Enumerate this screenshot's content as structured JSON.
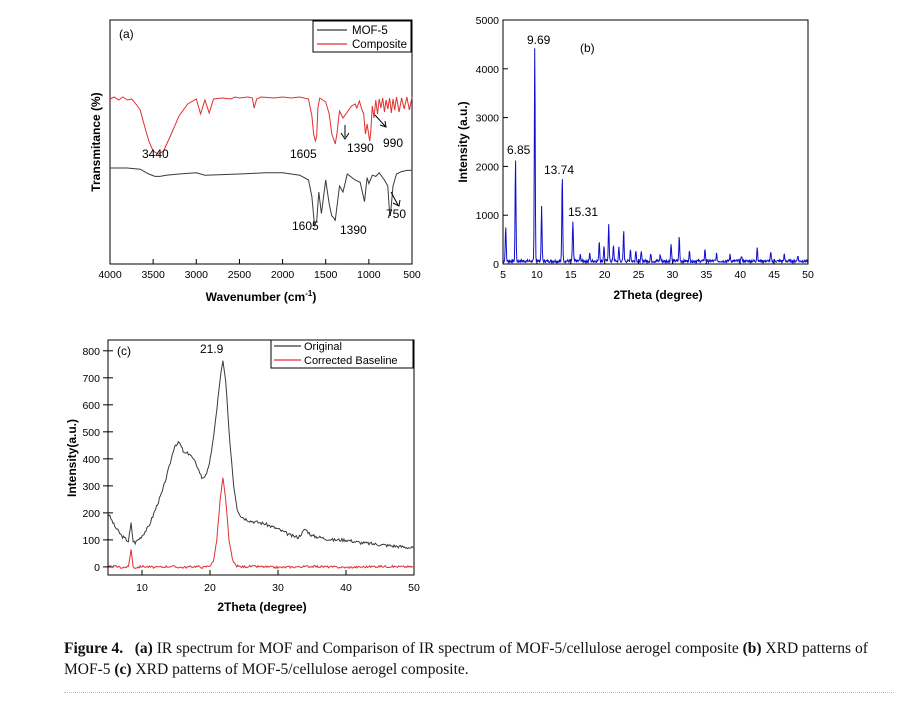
{
  "chart_data": [
    {
      "type": "line",
      "panel_label": "(a)",
      "xlabel": "Wavenumber (cm",
      "xlabel_sup": "-1",
      "xlabel_close": ")",
      "ylabel": "Transmitance (%)",
      "xlim": [
        4000,
        500
      ],
      "x_reversed": true,
      "xticks": [
        "4000",
        "3500",
        "3000",
        "2500",
        "2000",
        "1500",
        "1000",
        "500"
      ],
      "grid": false,
      "legend": "top-right",
      "series": [
        {
          "name": "MOF-5",
          "color": "#3a3a3a",
          "x": [
            4000,
            3800,
            3650,
            3550,
            3480,
            3420,
            3350,
            3200,
            3000,
            2900,
            2500,
            2200,
            2000,
            1900,
            1800,
            1700,
            1660,
            1630,
            1605,
            1580,
            1550,
            1500,
            1460,
            1430,
            1400,
            1390,
            1380,
            1340,
            1300,
            1250,
            1160,
            1100,
            1050,
            1020,
            1000,
            960,
            920,
            880,
            820,
            780,
            760,
            750,
            720,
            680,
            620,
            560,
            500
          ],
          "y": [
            1.0,
            1.0,
            0.99,
            0.95,
            0.93,
            0.93,
            0.94,
            0.95,
            0.96,
            0.94,
            0.95,
            0.96,
            0.96,
            0.95,
            0.94,
            0.9,
            0.76,
            0.52,
            0.56,
            0.8,
            0.62,
            0.9,
            0.7,
            0.6,
            0.58,
            0.56,
            0.62,
            0.85,
            0.8,
            0.95,
            0.9,
            0.88,
            0.72,
            0.92,
            0.87,
            0.94,
            0.93,
            0.96,
            0.9,
            0.85,
            0.62,
            0.6,
            0.85,
            0.95,
            0.97,
            0.98,
            0.98
          ]
        },
        {
          "name": "Composite",
          "color": "#e03030",
          "x": [
            4000,
            3950,
            3900,
            3850,
            3800,
            3750,
            3700,
            3650,
            3600,
            3550,
            3500,
            3440,
            3380,
            3300,
            3200,
            3100,
            3000,
            2950,
            2900,
            2850,
            2800,
            2700,
            2600,
            2550,
            2500,
            2400,
            2350,
            2330,
            2300,
            2250,
            2100,
            2000,
            1900,
            1800,
            1700,
            1660,
            1640,
            1620,
            1605,
            1590,
            1570,
            1550,
            1500,
            1460,
            1430,
            1400,
            1390,
            1370,
            1340,
            1300,
            1250,
            1200,
            1160,
            1140,
            1110,
            1080,
            1060,
            1040,
            1020,
            1000,
            990,
            980,
            960,
            940,
            920,
            900,
            880,
            860,
            840,
            820,
            800,
            780,
            760,
            740,
            720,
            700,
            680,
            650,
            620,
            590,
            560,
            530,
            500
          ],
          "y": [
            0.97,
            0.99,
            0.96,
            0.99,
            0.96,
            0.97,
            0.92,
            0.86,
            0.7,
            0.55,
            0.45,
            0.42,
            0.45,
            0.6,
            0.8,
            0.92,
            0.97,
            0.82,
            0.96,
            0.83,
            0.97,
            0.98,
            0.97,
            0.99,
            0.98,
            0.99,
            0.98,
            0.88,
            0.97,
            0.99,
            0.98,
            0.99,
            0.98,
            0.99,
            0.97,
            0.8,
            0.62,
            0.55,
            0.6,
            0.88,
            0.98,
            0.97,
            0.94,
            0.82,
            0.62,
            0.55,
            0.52,
            0.62,
            0.85,
            0.78,
            0.84,
            0.9,
            0.92,
            0.88,
            0.95,
            0.86,
            0.82,
            0.62,
            0.72,
            0.6,
            0.55,
            0.62,
            0.9,
            0.78,
            0.96,
            0.82,
            0.97,
            0.88,
            0.98,
            0.84,
            0.96,
            0.87,
            0.98,
            0.83,
            0.97,
            0.86,
            0.99,
            0.84,
            0.98,
            0.87,
            0.99,
            0.86,
            0.99
          ]
        }
      ],
      "annotations": [
        {
          "text": "3440",
          "series": "Composite"
        },
        {
          "text": "1605",
          "series": "Composite"
        },
        {
          "text": "1390",
          "series": "Composite"
        },
        {
          "text": "990",
          "series": "Composite"
        },
        {
          "text": "1605",
          "series": "MOF-5"
        },
        {
          "text": "1390",
          "series": "MOF-5"
        },
        {
          "text": "750",
          "series": "MOF-5"
        }
      ]
    },
    {
      "type": "line",
      "panel_label": "(b)",
      "xlabel": "2Theta (degree)",
      "ylabel": "Intensity (a.u.)",
      "xlim": [
        5,
        50
      ],
      "ylim": [
        0,
        5000
      ],
      "xticks": [
        "5",
        "10",
        "15",
        "20",
        "25",
        "30",
        "35",
        "40",
        "45",
        "50"
      ],
      "yticks": [
        "0",
        "1000",
        "2000",
        "3000",
        "4000",
        "5000"
      ],
      "grid": false,
      "series": [
        {
          "color": "#1010cc",
          "peaks": [
            [
              5.4,
              700
            ],
            [
              6.85,
              2100
            ],
            [
              9.69,
              4400
            ],
            [
              10.7,
              1100
            ],
            [
              13.74,
              1780
            ],
            [
              15.31,
              820
            ],
            [
              16.4,
              120
            ],
            [
              17.8,
              150
            ],
            [
              19.2,
              420
            ],
            [
              19.9,
              300
            ],
            [
              20.6,
              780
            ],
            [
              21.3,
              330
            ],
            [
              22.1,
              280
            ],
            [
              22.8,
              620
            ],
            [
              23.8,
              250
            ],
            [
              24.6,
              230
            ],
            [
              25.4,
              180
            ],
            [
              26.8,
              150
            ],
            [
              28.2,
              130
            ],
            [
              29.8,
              360
            ],
            [
              31.0,
              500
            ],
            [
              32.5,
              200
            ],
            [
              34.8,
              250
            ],
            [
              36.5,
              150
            ],
            [
              38.5,
              130
            ],
            [
              40.2,
              120
            ],
            [
              42.5,
              290
            ],
            [
              44.5,
              170
            ],
            [
              46.5,
              130
            ],
            [
              48.5,
              120
            ]
          ],
          "baseline": 60
        }
      ],
      "annotations": [
        {
          "text": "6.85",
          "x": 6.85
        },
        {
          "text": "9.69",
          "x": 9.69
        },
        {
          "text": "13.74",
          "x": 13.74
        },
        {
          "text": "15.31",
          "x": 15.31
        }
      ]
    },
    {
      "type": "line",
      "panel_label": "(c)",
      "xlabel": "2Theta (degree)",
      "ylabel": "Intensity(a.u.)",
      "xlim": [
        5,
        50
      ],
      "ylim": [
        -30,
        840
      ],
      "xticks": [
        "10",
        "20",
        "30",
        "40",
        "50"
      ],
      "yticks": [
        "0",
        "100",
        "200",
        "300",
        "400",
        "500",
        "600",
        "700",
        "800"
      ],
      "grid": false,
      "legend": "top-right",
      "series": [
        {
          "name": "Original",
          "color": "#3a3a3a",
          "x": [
            5,
            6,
            7,
            8,
            8.4,
            8.7,
            9,
            10,
            11,
            12,
            13,
            14,
            14.8,
            15.5,
            16.2,
            17,
            18,
            18.8,
            19.5,
            20.2,
            21,
            21.5,
            21.9,
            22.3,
            22.8,
            23.5,
            24,
            24.5,
            25,
            26,
            28,
            30,
            32,
            33,
            34,
            35,
            36,
            38,
            40,
            42,
            44,
            46,
            48,
            50
          ],
          "y": [
            200,
            150,
            115,
            95,
            160,
            95,
            90,
            115,
            150,
            215,
            280,
            370,
            450,
            460,
            420,
            420,
            380,
            330,
            340,
            420,
            580,
            700,
            760,
            690,
            500,
            300,
            215,
            190,
            180,
            170,
            160,
            140,
            115,
            110,
            140,
            115,
            110,
            100,
            100,
            90,
            85,
            80,
            75,
            70
          ]
        },
        {
          "name": "Corrected Baseline",
          "color": "#e03030",
          "x": [
            5,
            6,
            7,
            8,
            8.4,
            8.7,
            9,
            10,
            12,
            14,
            16,
            18,
            19,
            20,
            20.5,
            21,
            21.5,
            21.9,
            22.3,
            22.8,
            23.3,
            23.8,
            24.5,
            26,
            30,
            35,
            40,
            45,
            50
          ],
          "y": [
            0,
            2,
            -2,
            0,
            65,
            0,
            -3,
            2,
            -2,
            2,
            -2,
            2,
            -2,
            5,
            20,
            100,
            250,
            330,
            250,
            100,
            25,
            5,
            0,
            2,
            -2,
            2,
            -2,
            2,
            0
          ]
        }
      ],
      "annotations": [
        {
          "text": "21.9",
          "x": 21.9
        }
      ]
    }
  ],
  "caption": {
    "lead": "Figure 4.",
    "segments": [
      {
        "bold": true,
        "text": "(a)"
      },
      {
        "bold": false,
        "text": " IR spectrum for MOF and Comparison of IR spectrum of MOF-5/cellulose aerogel composite "
      },
      {
        "bold": true,
        "text": "(b)"
      },
      {
        "bold": false,
        "text": " XRD patterns of MOF-5 "
      },
      {
        "bold": true,
        "text": "(c)"
      },
      {
        "bold": false,
        "text": " XRD patterns of MOF-5/cellulose aerogel composite."
      }
    ]
  }
}
